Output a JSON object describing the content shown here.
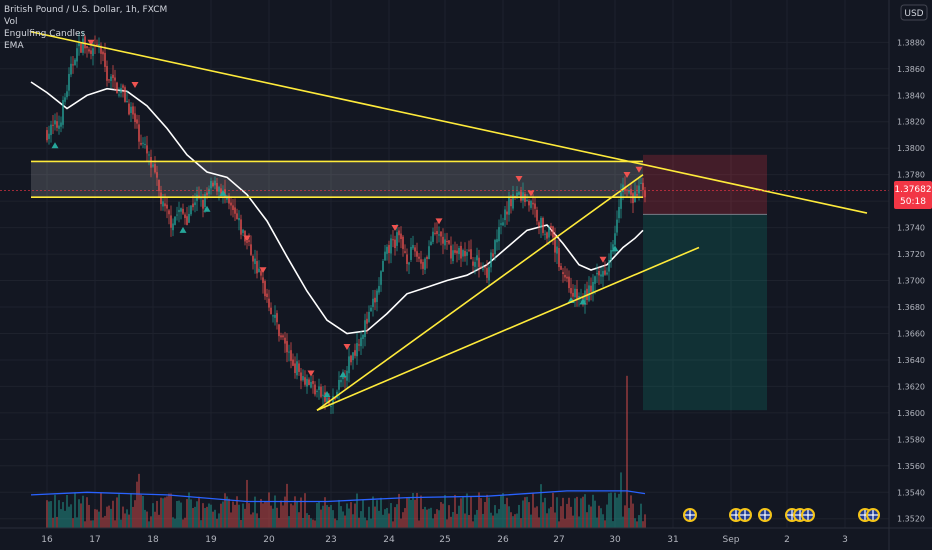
{
  "header": {
    "symbol": "British Pound / U.S. Dollar, 1h, FXCM",
    "indicators": [
      "Vol",
      "Engulfing Candles",
      "EMA"
    ]
  },
  "currency": "USD",
  "price_tag": {
    "price": "1.37682",
    "countdown": "50:18"
  },
  "chart_data": {
    "type": "candlestick",
    "title": "British Pound / U.S. Dollar, 1h, FXCM",
    "y_ticks": [
      1.388,
      1.386,
      1.384,
      1.382,
      1.38,
      1.378,
      1.376,
      1.374,
      1.372,
      1.37,
      1.368,
      1.366,
      1.364,
      1.362,
      1.36,
      1.358,
      1.356,
      1.354,
      1.352
    ],
    "ylim": [
      1.3513,
      1.3912
    ],
    "x_labels": [
      {
        "label": "16",
        "idx": 0
      },
      {
        "label": "17",
        "idx": 24
      },
      {
        "label": "18",
        "idx": 53
      },
      {
        "label": "19",
        "idx": 82
      },
      {
        "label": "20",
        "idx": 111
      },
      {
        "label": "23",
        "idx": 142
      },
      {
        "label": "24",
        "idx": 171
      },
      {
        "label": "25",
        "idx": 199
      },
      {
        "label": "26",
        "idx": 228
      },
      {
        "label": "27",
        "idx": 256
      },
      {
        "label": "30",
        "idx": 284
      },
      {
        "label": "31",
        "idx": 313
      },
      {
        "label": "Sep",
        "idx": 342
      },
      {
        "label": "2",
        "idx": 370
      },
      {
        "label": "3",
        "idx": 399
      }
    ],
    "close_path": [
      [
        0,
        1.3812
      ],
      [
        6,
        1.3818
      ],
      [
        10,
        1.3845
      ],
      [
        14,
        1.3872
      ],
      [
        18,
        1.388
      ],
      [
        22,
        1.3868
      ],
      [
        26,
        1.3878
      ],
      [
        30,
        1.3855
      ],
      [
        34,
        1.3848
      ],
      [
        38,
        1.3842
      ],
      [
        42,
        1.3828
      ],
      [
        46,
        1.381
      ],
      [
        50,
        1.3795
      ],
      [
        54,
        1.3778
      ],
      [
        58,
        1.3755
      ],
      [
        62,
        1.3745
      ],
      [
        66,
        1.3752
      ],
      [
        70,
        1.3748
      ],
      [
        74,
        1.3762
      ],
      [
        78,
        1.3758
      ],
      [
        82,
        1.377
      ],
      [
        86,
        1.3772
      ],
      [
        90,
        1.3758
      ],
      [
        94,
        1.3748
      ],
      [
        98,
        1.3735
      ],
      [
        102,
        1.3722
      ],
      [
        106,
        1.3705
      ],
      [
        110,
        1.3688
      ],
      [
        114,
        1.367
      ],
      [
        118,
        1.3655
      ],
      [
        122,
        1.364
      ],
      [
        126,
        1.3632
      ],
      [
        130,
        1.3625
      ],
      [
        134,
        1.3618
      ],
      [
        138,
        1.3612
      ],
      [
        142,
        1.3605
      ],
      [
        145,
        1.3615
      ],
      [
        149,
        1.3632
      ],
      [
        153,
        1.3645
      ],
      [
        157,
        1.366
      ],
      [
        161,
        1.3672
      ],
      [
        165,
        1.369
      ],
      [
        168,
        1.3712
      ],
      [
        172,
        1.3728
      ],
      [
        176,
        1.3732
      ],
      [
        180,
        1.3718
      ],
      [
        184,
        1.3722
      ],
      [
        188,
        1.3712
      ],
      [
        192,
        1.373
      ],
      [
        196,
        1.3735
      ],
      [
        200,
        1.3725
      ],
      [
        204,
        1.372
      ],
      [
        208,
        1.3722
      ],
      [
        212,
        1.3718
      ],
      [
        216,
        1.3712
      ],
      [
        220,
        1.3708
      ],
      [
        224,
        1.3725
      ],
      [
        228,
        1.3745
      ],
      [
        232,
        1.3762
      ],
      [
        236,
        1.3765
      ],
      [
        240,
        1.3762
      ],
      [
        244,
        1.3752
      ],
      [
        248,
        1.374
      ],
      [
        252,
        1.3735
      ],
      [
        256,
        1.3715
      ],
      [
        260,
        1.37
      ],
      [
        264,
        1.3688
      ],
      [
        268,
        1.3685
      ],
      [
        272,
        1.3695
      ],
      [
        276,
        1.3702
      ],
      [
        280,
        1.3712
      ],
      [
        284,
        1.374
      ],
      [
        287,
        1.3772
      ],
      [
        290,
        1.3768
      ],
      [
        293,
        1.376
      ],
      [
        296,
        1.377
      ],
      [
        299,
        1.3768
      ]
    ],
    "ema": [
      [
        -8,
        1.385
      ],
      [
        0,
        1.3842
      ],
      [
        10,
        1.383
      ],
      [
        20,
        1.384
      ],
      [
        30,
        1.3845
      ],
      [
        40,
        1.3843
      ],
      [
        50,
        1.3832
      ],
      [
        60,
        1.3815
      ],
      [
        70,
        1.3795
      ],
      [
        80,
        1.3782
      ],
      [
        90,
        1.3778
      ],
      [
        100,
        1.3765
      ],
      [
        110,
        1.3745
      ],
      [
        120,
        1.3718
      ],
      [
        130,
        1.3692
      ],
      [
        140,
        1.367
      ],
      [
        150,
        1.366
      ],
      [
        160,
        1.3662
      ],
      [
        170,
        1.3675
      ],
      [
        180,
        1.369
      ],
      [
        190,
        1.3695
      ],
      [
        200,
        1.37
      ],
      [
        210,
        1.3704
      ],
      [
        220,
        1.3712
      ],
      [
        230,
        1.3725
      ],
      [
        240,
        1.3738
      ],
      [
        250,
        1.3742
      ],
      [
        258,
        1.3728
      ],
      [
        266,
        1.3712
      ],
      [
        272,
        1.3708
      ],
      [
        280,
        1.3712
      ],
      [
        288,
        1.3725
      ],
      [
        294,
        1.3732
      ],
      [
        298,
        1.3738
      ]
    ],
    "volume_ma": [
      [
        -8,
        1.3538
      ],
      [
        20,
        1.354
      ],
      [
        60,
        1.3538
      ],
      [
        100,
        1.3533
      ],
      [
        140,
        1.3533
      ],
      [
        180,
        1.3536
      ],
      [
        220,
        1.3537
      ],
      [
        260,
        1.3541
      ],
      [
        290,
        1.3541
      ],
      [
        299,
        1.3539
      ]
    ],
    "trendlines": [
      {
        "from": [
          -8,
          1.3888
        ],
        "to": [
          410,
          1.3751
        ]
      },
      {
        "from": [
          -8,
          1.379
        ],
        "to": [
          298,
          1.379
        ]
      },
      {
        "from": [
          -8,
          1.3763
        ],
        "to": [
          298,
          1.3763
        ]
      },
      {
        "from": [
          135,
          1.3602
        ],
        "to": [
          298,
          1.378
        ]
      },
      {
        "from": [
          135,
          1.3602
        ],
        "to": [
          326,
          1.3725
        ]
      }
    ],
    "zone": {
      "from": -8,
      "to": 298,
      "top": 1.379,
      "bottom": 1.3763
    },
    "position": {
      "entry": 1.375,
      "stop": 1.3795,
      "target": 1.3602,
      "from": 298,
      "to": 360
    },
    "signals_up": [
      [
        4,
        1.38
      ],
      [
        68,
        1.3736
      ],
      [
        80,
        1.3752
      ],
      [
        88,
        1.3764
      ],
      [
        140,
        1.3612
      ],
      [
        148,
        1.3627
      ],
      [
        262,
        1.3683
      ],
      [
        268,
        1.3682
      ],
      [
        284,
        1.3722
      ]
    ],
    "signals_down": [
      [
        22,
        1.3882
      ],
      [
        44,
        1.385
      ],
      [
        100,
        1.3734
      ],
      [
        108,
        1.371
      ],
      [
        132,
        1.3632
      ],
      [
        150,
        1.3652
      ],
      [
        174,
        1.3742
      ],
      [
        196,
        1.3747
      ],
      [
        236,
        1.3779
      ],
      [
        242,
        1.3768
      ],
      [
        278,
        1.3718
      ],
      [
        290,
        1.3782
      ],
      [
        296,
        1.3786
      ]
    ]
  }
}
